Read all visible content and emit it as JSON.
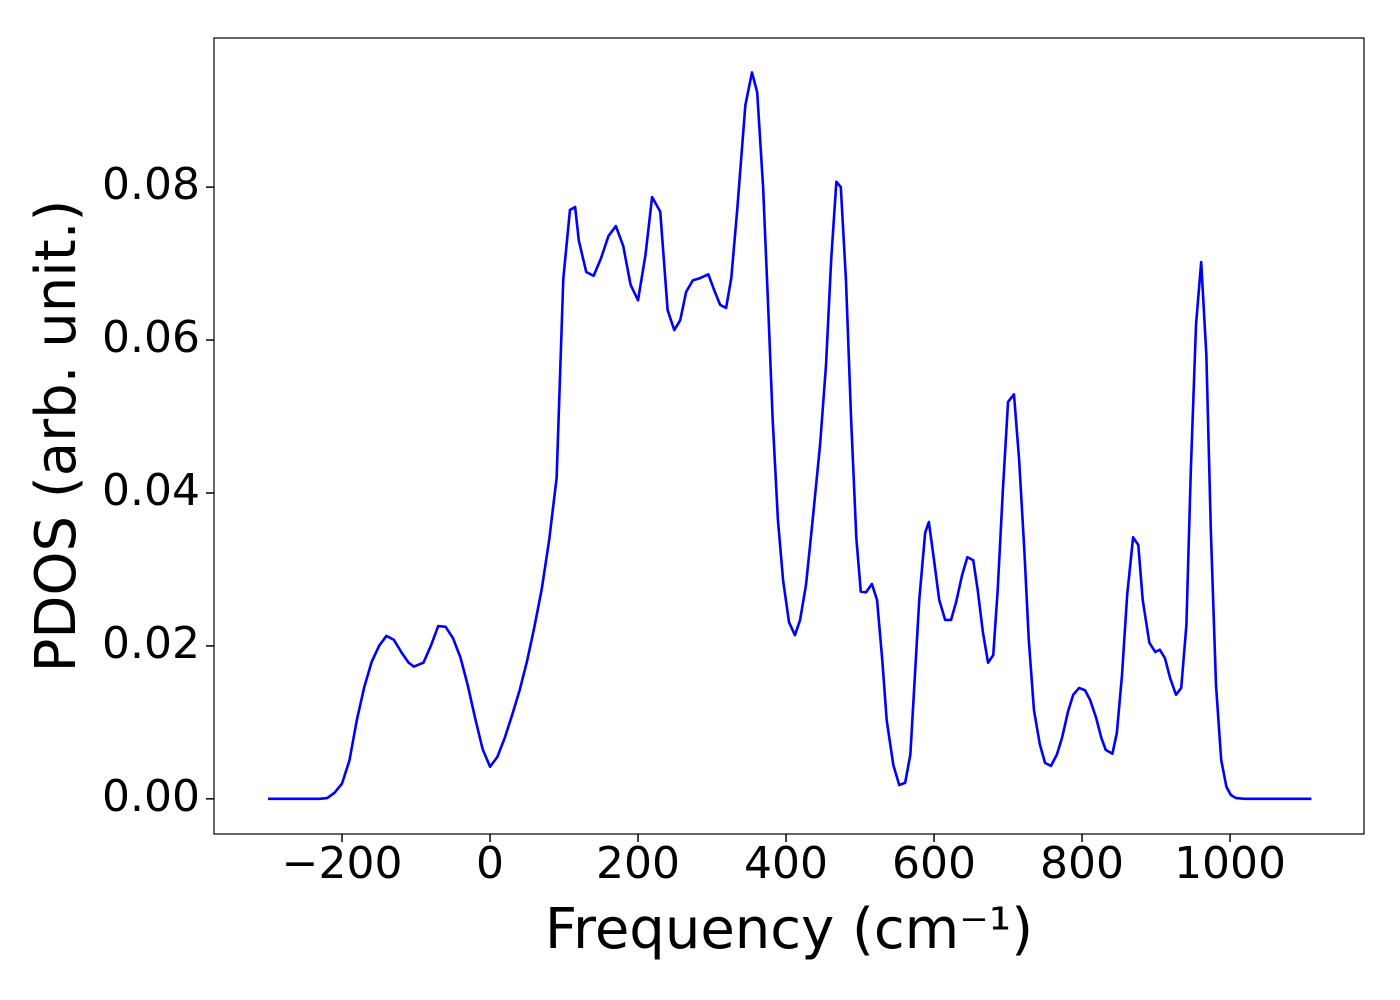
{
  "chart_data": {
    "type": "line",
    "xlabel": "Frequency (cm⁻¹)",
    "ylabel": "PDOS (arb. unit.)",
    "x": [
      -300,
      -280,
      -260,
      -240,
      -230,
      -220,
      -210,
      -200,
      -190,
      -180,
      -170,
      -160,
      -150,
      -140,
      -130,
      -120,
      -110,
      -103,
      -90,
      -80,
      -70,
      -60,
      -50,
      -40,
      -30,
      -20,
      -10,
      0,
      10,
      20,
      30,
      40,
      50,
      60,
      70,
      80,
      90,
      99,
      108,
      115,
      120,
      130,
      140,
      150,
      160,
      170,
      180,
      190,
      200,
      210,
      219,
      230,
      240,
      249,
      257,
      265,
      274,
      284,
      295,
      303,
      311,
      319,
      326,
      334,
      345,
      354,
      361,
      369,
      376,
      382,
      389,
      396,
      404,
      412,
      419,
      427,
      436,
      446,
      454,
      461,
      468,
      474,
      481,
      488,
      495,
      501,
      508,
      516,
      523,
      530,
      536,
      545,
      553,
      561,
      568,
      573,
      580,
      588,
      593,
      600,
      607,
      615,
      623,
      630,
      638,
      645,
      653,
      659,
      666,
      673,
      680,
      686,
      693,
      700,
      708,
      715,
      722,
      728,
      735,
      743,
      750,
      758,
      766,
      773,
      781,
      788,
      796,
      804,
      811,
      819,
      826,
      832,
      841,
      847,
      854,
      861,
      869,
      876,
      882,
      891,
      899,
      905,
      912,
      919,
      927,
      934,
      941,
      947,
      954,
      961,
      968,
      974,
      981,
      988,
      995,
      1001,
      1008,
      1020,
      1040,
      1060,
      1080,
      1110
    ],
    "series": [
      {
        "name": "PDOS",
        "color": "#0000ff",
        "values": [
          0,
          0,
          0,
          0,
          0,
          0.0001,
          0.0008,
          0.002,
          0.005,
          0.0103,
          0.0146,
          0.0179,
          0.02,
          0.0213,
          0.0208,
          0.0192,
          0.0178,
          0.0173,
          0.0178,
          0.02,
          0.0226,
          0.0225,
          0.021,
          0.0185,
          0.0148,
          0.0105,
          0.0065,
          0.0042,
          0.0055,
          0.008,
          0.011,
          0.0142,
          0.018,
          0.0225,
          0.0275,
          0.0339,
          0.042,
          0.068,
          0.077,
          0.0774,
          0.073,
          0.0689,
          0.0684,
          0.0707,
          0.0736,
          0.0749,
          0.0723,
          0.0672,
          0.0652,
          0.0711,
          0.0787,
          0.0768,
          0.0639,
          0.0613,
          0.0626,
          0.0663,
          0.0678,
          0.0681,
          0.0686,
          0.0665,
          0.0646,
          0.0642,
          0.0681,
          0.077,
          0.0907,
          0.095,
          0.0924,
          0.08,
          0.064,
          0.0495,
          0.0365,
          0.0286,
          0.0231,
          0.0214,
          0.0234,
          0.028,
          0.0365,
          0.0463,
          0.0567,
          0.0705,
          0.0807,
          0.08,
          0.0678,
          0.0495,
          0.0341,
          0.0271,
          0.027,
          0.0281,
          0.026,
          0.0182,
          0.0103,
          0.0044,
          0.0018,
          0.0021,
          0.0058,
          0.0142,
          0.026,
          0.0348,
          0.0362,
          0.0312,
          0.026,
          0.0234,
          0.0234,
          0.0258,
          0.0293,
          0.0316,
          0.0312,
          0.0273,
          0.0218,
          0.0178,
          0.0188,
          0.0273,
          0.0404,
          0.0519,
          0.0529,
          0.0443,
          0.0325,
          0.0208,
          0.0116,
          0.0071,
          0.0047,
          0.0043,
          0.0058,
          0.008,
          0.0114,
          0.0136,
          0.0145,
          0.0142,
          0.0129,
          0.0106,
          0.008,
          0.0064,
          0.0059,
          0.0086,
          0.0162,
          0.0267,
          0.0342,
          0.0332,
          0.026,
          0.0204,
          0.0192,
          0.0195,
          0.0184,
          0.0158,
          0.0136,
          0.0145,
          0.0227,
          0.043,
          0.062,
          0.0702,
          0.058,
          0.0352,
          0.0149,
          0.0051,
          0.0016,
          0.0005,
          0.0001,
          0,
          0,
          0,
          0,
          0
        ]
      }
    ],
    "xlim": [
      -373,
      1181
    ],
    "ylim": [
      -0.0046,
      0.0995
    ],
    "xticks": [
      {
        "value": -200,
        "label": "−200"
      },
      0,
      200,
      400,
      600,
      800,
      1000
    ],
    "yticks": [
      {
        "value": 0,
        "label": "0.00"
      },
      {
        "value": 0.02,
        "label": "0.02"
      },
      {
        "value": 0.04,
        "label": "0.04"
      },
      {
        "value": 0.06,
        "label": "0.06"
      },
      {
        "value": 0.08,
        "label": "0.08"
      }
    ],
    "grid": false
  }
}
